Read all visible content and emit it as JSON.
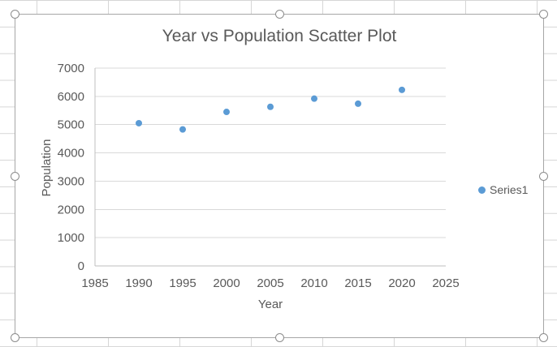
{
  "chart_data": {
    "type": "scatter",
    "title": "Year vs Population Scatter Plot",
    "xlabel": "Year",
    "ylabel": "Population",
    "xlim": [
      1985,
      2025
    ],
    "ylim": [
      0,
      7000
    ],
    "x_ticks": [
      1985,
      1990,
      1995,
      2000,
      2005,
      2010,
      2015,
      2020,
      2025
    ],
    "y_ticks": [
      0,
      1000,
      2000,
      3000,
      4000,
      5000,
      6000,
      7000
    ],
    "grid": "horizontal-only",
    "legend_position": "right",
    "series": [
      {
        "name": "Series1",
        "marker": "circle",
        "points": [
          [
            1990,
            5050
          ],
          [
            1995,
            4830
          ],
          [
            2000,
            5450
          ],
          [
            2005,
            5630
          ],
          [
            2010,
            5920
          ],
          [
            2015,
            5740
          ],
          [
            2020,
            6230
          ]
        ]
      }
    ],
    "colors": {
      "marker": "#5B9BD5",
      "text": "#595959",
      "gridline": "#D9D9D9",
      "axis_line": "#BFBFBF"
    }
  },
  "chart_frame": {
    "selected": true,
    "handles": [
      "top-left",
      "top-center",
      "top-right",
      "middle-left",
      "middle-right",
      "bottom-left",
      "bottom-center",
      "bottom-right"
    ]
  }
}
